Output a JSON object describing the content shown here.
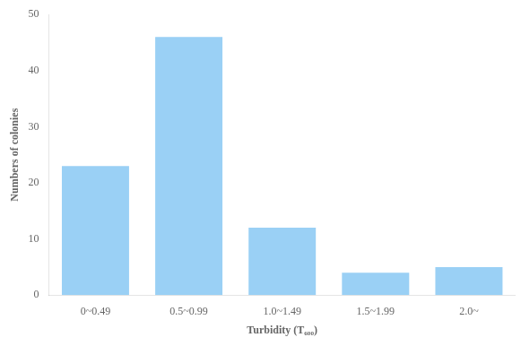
{
  "chart_data": {
    "type": "bar",
    "categories": [
      "0~0.49",
      "0.5~0.99",
      "1.0~1.49",
      "1.5~1.99",
      "2.0~"
    ],
    "values": [
      23,
      46,
      12,
      4,
      5
    ],
    "xlabel": "Turbidity (T₆₀₀)",
    "ylabel": "Numbers of colonies",
    "ylim": [
      0,
      50
    ],
    "yticks": [
      0,
      10,
      20,
      30,
      40,
      50
    ],
    "grid": false
  }
}
